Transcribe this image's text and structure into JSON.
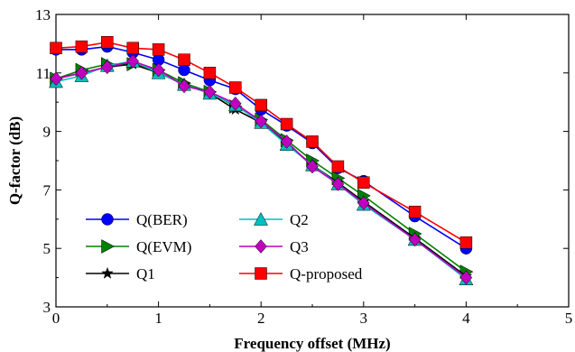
{
  "chart_data": {
    "type": "line",
    "title": "",
    "xlabel": "Frequency offset (MHz)",
    "ylabel": "Q-factor (dB)",
    "xlim": [
      0,
      5
    ],
    "ylim": [
      3,
      13
    ],
    "xticks": [
      0,
      1,
      2,
      3,
      4,
      5
    ],
    "yticks": [
      3,
      5,
      7,
      9,
      11,
      13
    ],
    "grid": false,
    "legend_position": "bottom-left",
    "series": [
      {
        "name": "Q(BER)",
        "color": "#0000ff",
        "marker": "circle",
        "x": [
          0,
          0.25,
          0.5,
          0.75,
          1,
          1.25,
          1.5,
          1.75,
          2,
          2.25,
          2.5,
          2.75,
          3,
          3.5,
          4
        ],
        "y": [
          11.8,
          11.8,
          11.9,
          11.7,
          11.45,
          11.1,
          10.75,
          10.45,
          9.75,
          9.2,
          8.6,
          7.75,
          7.3,
          6.1,
          5.0
        ]
      },
      {
        "name": "Q(EVM)",
        "color": "#008000",
        "marker": "triangle-right",
        "x": [
          0,
          0.25,
          0.5,
          0.75,
          1,
          1.25,
          1.5,
          1.75,
          2,
          2.25,
          2.5,
          2.75,
          3,
          3.5,
          4
        ],
        "y": [
          10.8,
          11.1,
          11.3,
          11.3,
          11.1,
          10.65,
          10.35,
          9.85,
          9.4,
          8.7,
          8.0,
          7.4,
          6.8,
          5.5,
          4.2
        ]
      },
      {
        "name": "Q1",
        "color": "#000000",
        "marker": "star",
        "x": [
          0,
          0.25,
          0.5,
          0.75,
          1,
          1.25,
          1.5,
          1.75,
          2,
          2.25,
          2.5,
          2.75,
          3,
          3.5,
          4
        ],
        "y": [
          10.8,
          11.0,
          11.2,
          11.3,
          11.0,
          10.6,
          10.3,
          9.75,
          9.3,
          8.6,
          7.85,
          7.25,
          6.6,
          5.35,
          4.05
        ]
      },
      {
        "name": "Q2",
        "color": "#00bfbf",
        "marker": "triangle-up",
        "x": [
          0,
          0.25,
          0.5,
          0.75,
          1,
          1.25,
          1.5,
          1.75,
          2,
          2.25,
          2.5,
          2.75,
          3,
          3.5,
          4
        ],
        "y": [
          10.7,
          10.9,
          11.25,
          11.4,
          11.0,
          10.6,
          10.3,
          9.9,
          9.3,
          8.55,
          7.85,
          7.2,
          6.5,
          5.3,
          3.95
        ]
      },
      {
        "name": "Q3",
        "color": "#bf00bf",
        "marker": "diamond",
        "x": [
          0,
          0.25,
          0.5,
          0.75,
          1,
          1.25,
          1.5,
          1.75,
          2,
          2.25,
          2.5,
          2.75,
          3,
          3.5,
          4
        ],
        "y": [
          10.8,
          11.0,
          11.2,
          11.4,
          11.1,
          10.55,
          10.35,
          9.95,
          9.35,
          8.65,
          7.8,
          7.2,
          6.55,
          5.3,
          4.0
        ]
      },
      {
        "name": "Q-proposed",
        "color": "#ff0000",
        "marker": "square",
        "x": [
          0,
          0.25,
          0.5,
          0.75,
          1,
          1.25,
          1.5,
          1.75,
          2,
          2.25,
          2.5,
          2.75,
          3,
          3.5,
          4
        ],
        "y": [
          11.85,
          11.9,
          12.05,
          11.85,
          11.8,
          11.45,
          11.0,
          10.5,
          9.9,
          9.25,
          8.65,
          7.8,
          7.25,
          6.25,
          5.2
        ]
      }
    ]
  }
}
